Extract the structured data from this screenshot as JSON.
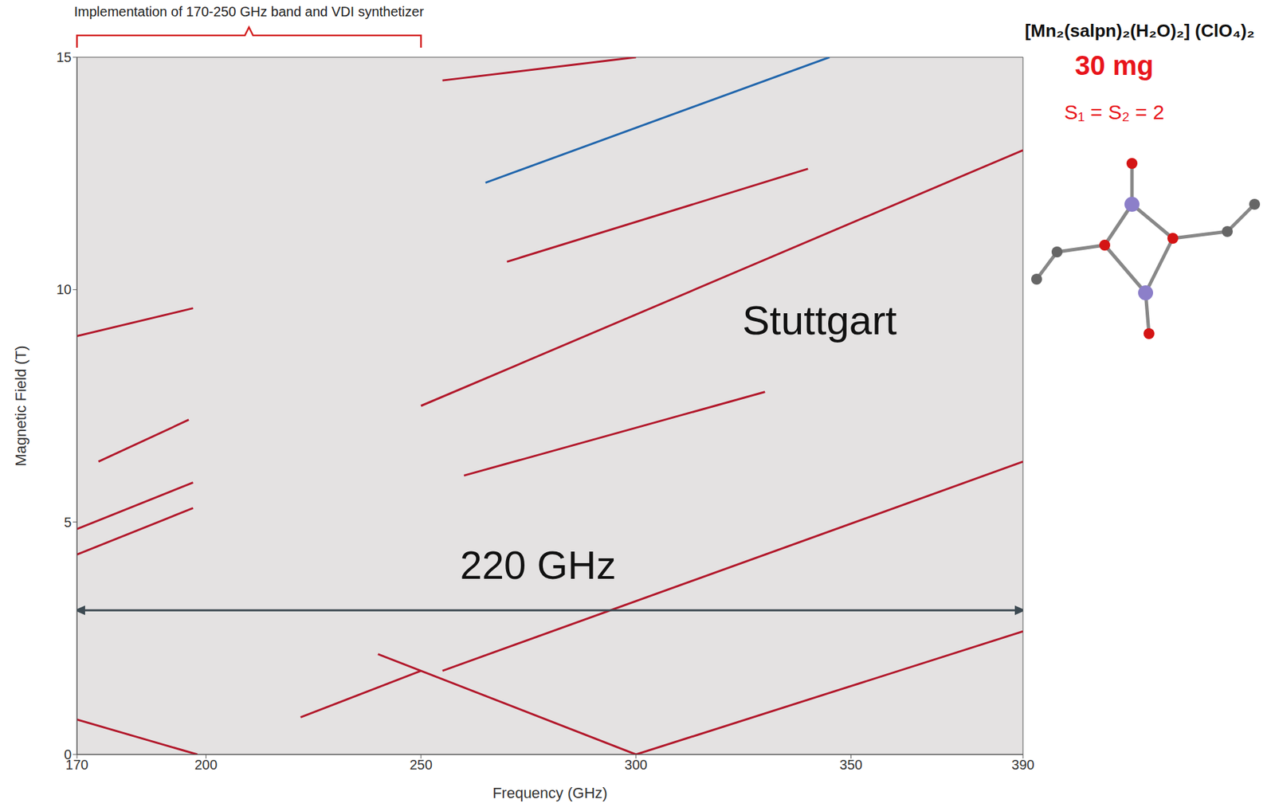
{
  "chart_data": {
    "type": "line",
    "title": "Implementation of 170-250 GHz band and VDI synthetizer",
    "title_span": [
      170,
      250
    ],
    "x_label": "Frequency (GHz)",
    "y_label": "Magnetic Field (T)",
    "xlim": [
      170,
      390
    ],
    "xticks": [
      170,
      200,
      250,
      300,
      350,
      390
    ],
    "ylim": [
      0,
      15
    ],
    "yticks": [
      0,
      5,
      10,
      15
    ],
    "grid": false,
    "tick_labels": true,
    "series": [
      {
        "color": "#b2182b",
        "x": [
          240,
          300
        ],
        "values": [
          2.16,
          0
        ]
      },
      {
        "color": "#b2182b",
        "x": [
          300,
          390
        ],
        "values": [
          0,
          2.65
        ]
      },
      {
        "color": "#b2182b",
        "x": [
          255,
          390
        ],
        "values": [
          1.8,
          6.3
        ]
      },
      {
        "color": "#b2182b",
        "x": [
          170,
          198
        ],
        "values": [
          0.75,
          0
        ]
      },
      {
        "color": "#b2182b",
        "x": [
          250,
          390
        ],
        "values": [
          7.5,
          13.0
        ]
      },
      {
        "color": "#b2182b",
        "x": [
          260,
          330
        ],
        "values": [
          6.0,
          7.8
        ]
      },
      {
        "color": "#b2182b",
        "x": [
          270,
          340
        ],
        "values": [
          10.6,
          12.6
        ]
      },
      {
        "color": "#2166ac",
        "x": [
          265,
          345
        ],
        "values": [
          12.3,
          15.0
        ]
      },
      {
        "color": "#b2182b",
        "x": [
          255,
          300
        ],
        "values": [
          14.5,
          15.0
        ]
      },
      {
        "color": "#b2182b",
        "x": [
          170,
          197
        ],
        "values": [
          4.3,
          5.3
        ]
      },
      {
        "color": "#b2182b",
        "x": [
          170,
          197
        ],
        "values": [
          4.85,
          5.85
        ]
      },
      {
        "color": "#b2182b",
        "x": [
          175,
          196
        ],
        "values": [
          6.3,
          7.2
        ]
      },
      {
        "color": "#b2182b",
        "x": [
          170,
          197
        ],
        "values": [
          9.0,
          9.6
        ]
      },
      {
        "color": "#b2182b",
        "x": [
          222,
          250
        ],
        "values": [
          0.8,
          1.8
        ]
      }
    ],
    "annotations": [
      {
        "text": "220 GHz",
        "x": [
          170,
          390
        ],
        "y": 3.1,
        "color": "#3d4a52"
      },
      {
        "text": "Stuttgart"
      }
    ],
    "compound": "[Mn₂(salpn)₂(H₂O)₂] (ClO₄)₂",
    "mass": "30 mg",
    "spin": "S₁ = S₂ = 2"
  }
}
